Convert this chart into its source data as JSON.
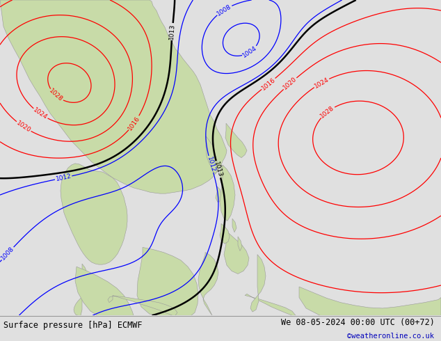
{
  "title_left": "Surface pressure [hPa] ECMWF",
  "title_right": "We 08-05-2024 00:00 UTC (00+72)",
  "credit": "©weatheronline.co.uk",
  "bg_color": "#e0e0e0",
  "map_bg": "#d8d8d8",
  "land_color": "#c8dba8",
  "land_edge": "#999999",
  "label_fontsize": 7,
  "credit_color": "#0000bb",
  "bottom_bar_color": "#e8e8e8",
  "color_low": "#0000ff",
  "color_1013": "#000000",
  "color_high": "#ff0000"
}
